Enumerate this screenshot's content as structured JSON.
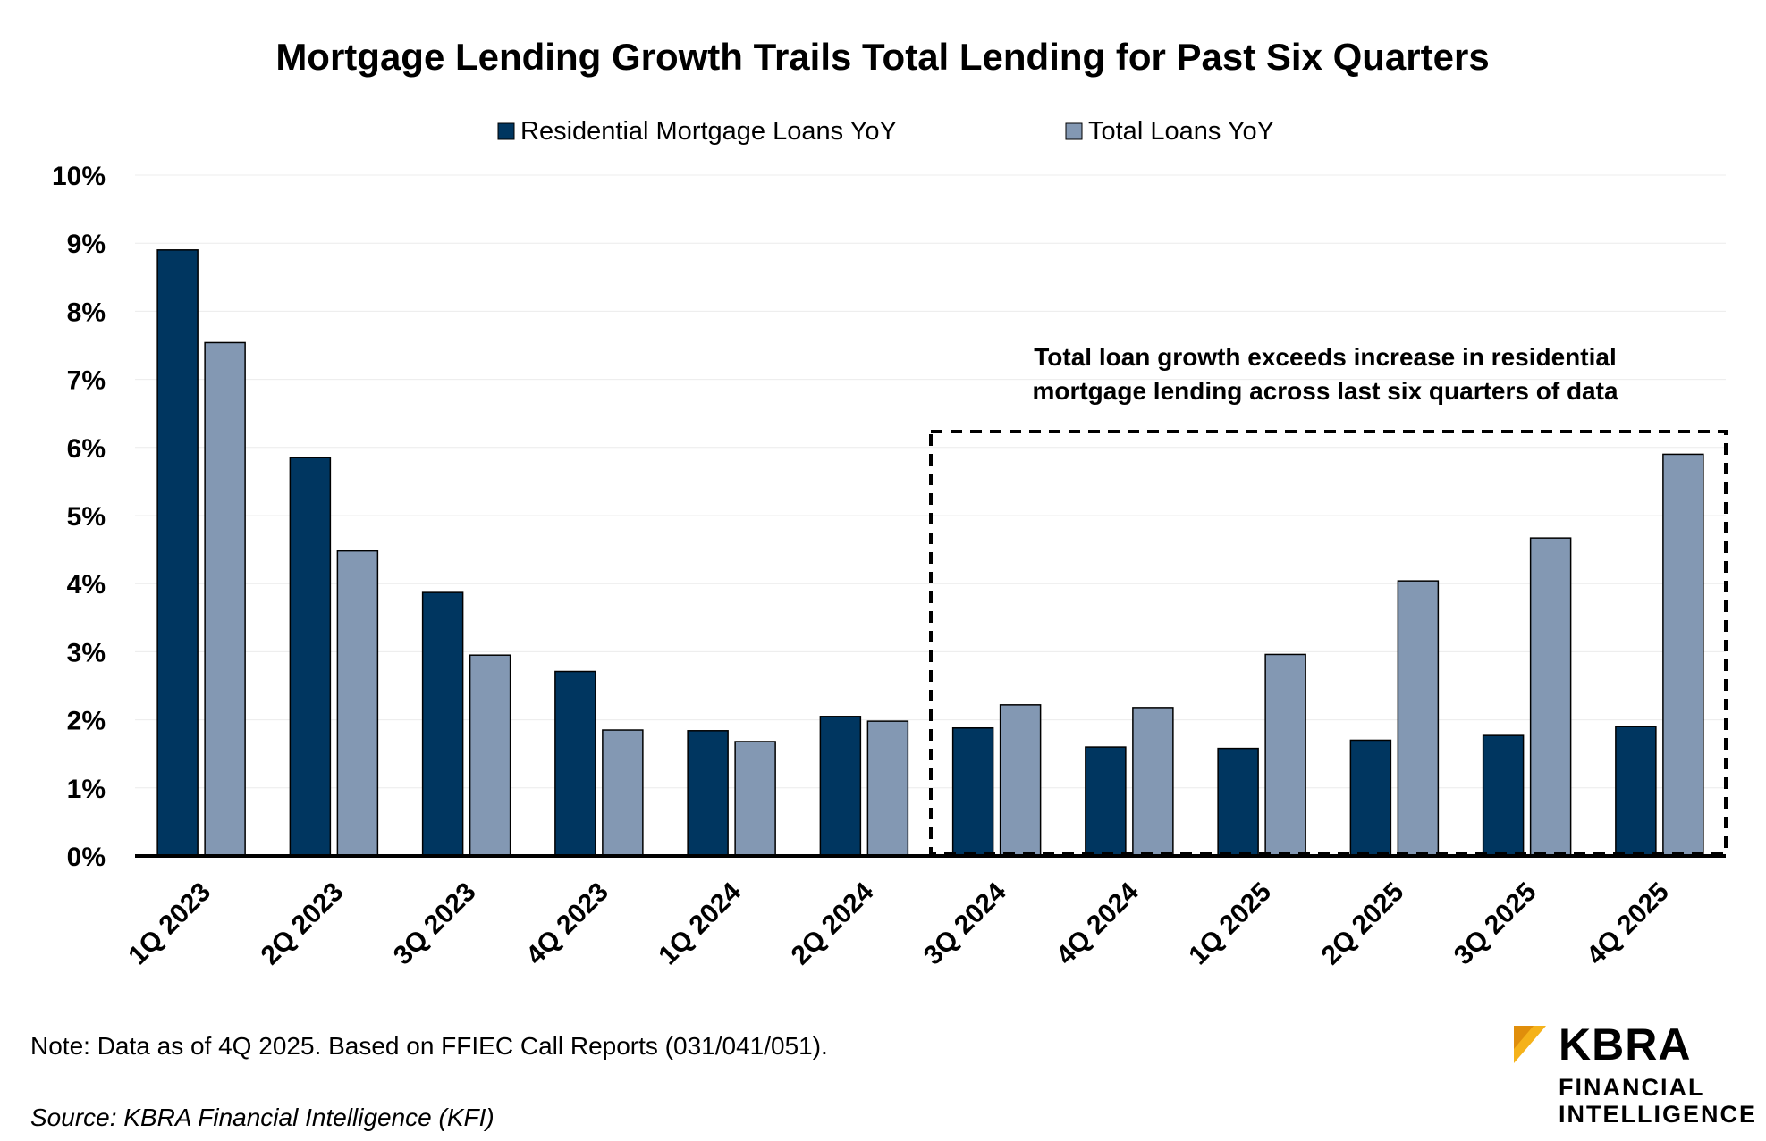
{
  "chart_data": {
    "type": "bar",
    "title": "Mortgage Lending Growth Trails Total Lending for Past Six Quarters",
    "categories": [
      "1Q 2023",
      "2Q 2023",
      "3Q 2023",
      "4Q 2023",
      "1Q 2024",
      "2Q 2024",
      "3Q 2024",
      "4Q 2024",
      "1Q 2025",
      "2Q 2025",
      "3Q 2025",
      "4Q 2025"
    ],
    "series": [
      {
        "name": "Residential Mortgage Loans YoY",
        "color": "#003660",
        "values": [
          8.9,
          5.85,
          3.87,
          2.71,
          1.84,
          2.05,
          1.88,
          1.6,
          1.58,
          1.7,
          1.77,
          1.9
        ]
      },
      {
        "name": "Total Loans YoY",
        "color": "#8398b3",
        "values": [
          7.54,
          4.48,
          2.95,
          1.85,
          1.68,
          1.98,
          2.22,
          2.18,
          2.96,
          4.04,
          4.67,
          5.9
        ]
      }
    ],
    "ylim": [
      0,
      10
    ],
    "yticks": [
      "0%",
      "1%",
      "2%",
      "3%",
      "4%",
      "5%",
      "6%",
      "7%",
      "8%",
      "9%",
      "10%"
    ],
    "xlabel": "",
    "ylabel": "",
    "grid": true,
    "legend": "top-center",
    "annotation": {
      "lines": [
        "Total loan growth exceeds increase in residential",
        "mortgage lending across last six quarters of data"
      ],
      "highlight_from": "3Q 2024",
      "highlight_to": "4Q 2025"
    }
  },
  "footer": {
    "note": "Note: Data as of 4Q 2025. Based on FFIEC Call Reports (031/041/051).",
    "source": "Source: KBRA Financial Intelligence (KFI)"
  },
  "logo": {
    "name": "KBRA",
    "line1": "FINANCIAL",
    "line2": "INTELLIGENCE",
    "accent": "#f5b21a"
  }
}
